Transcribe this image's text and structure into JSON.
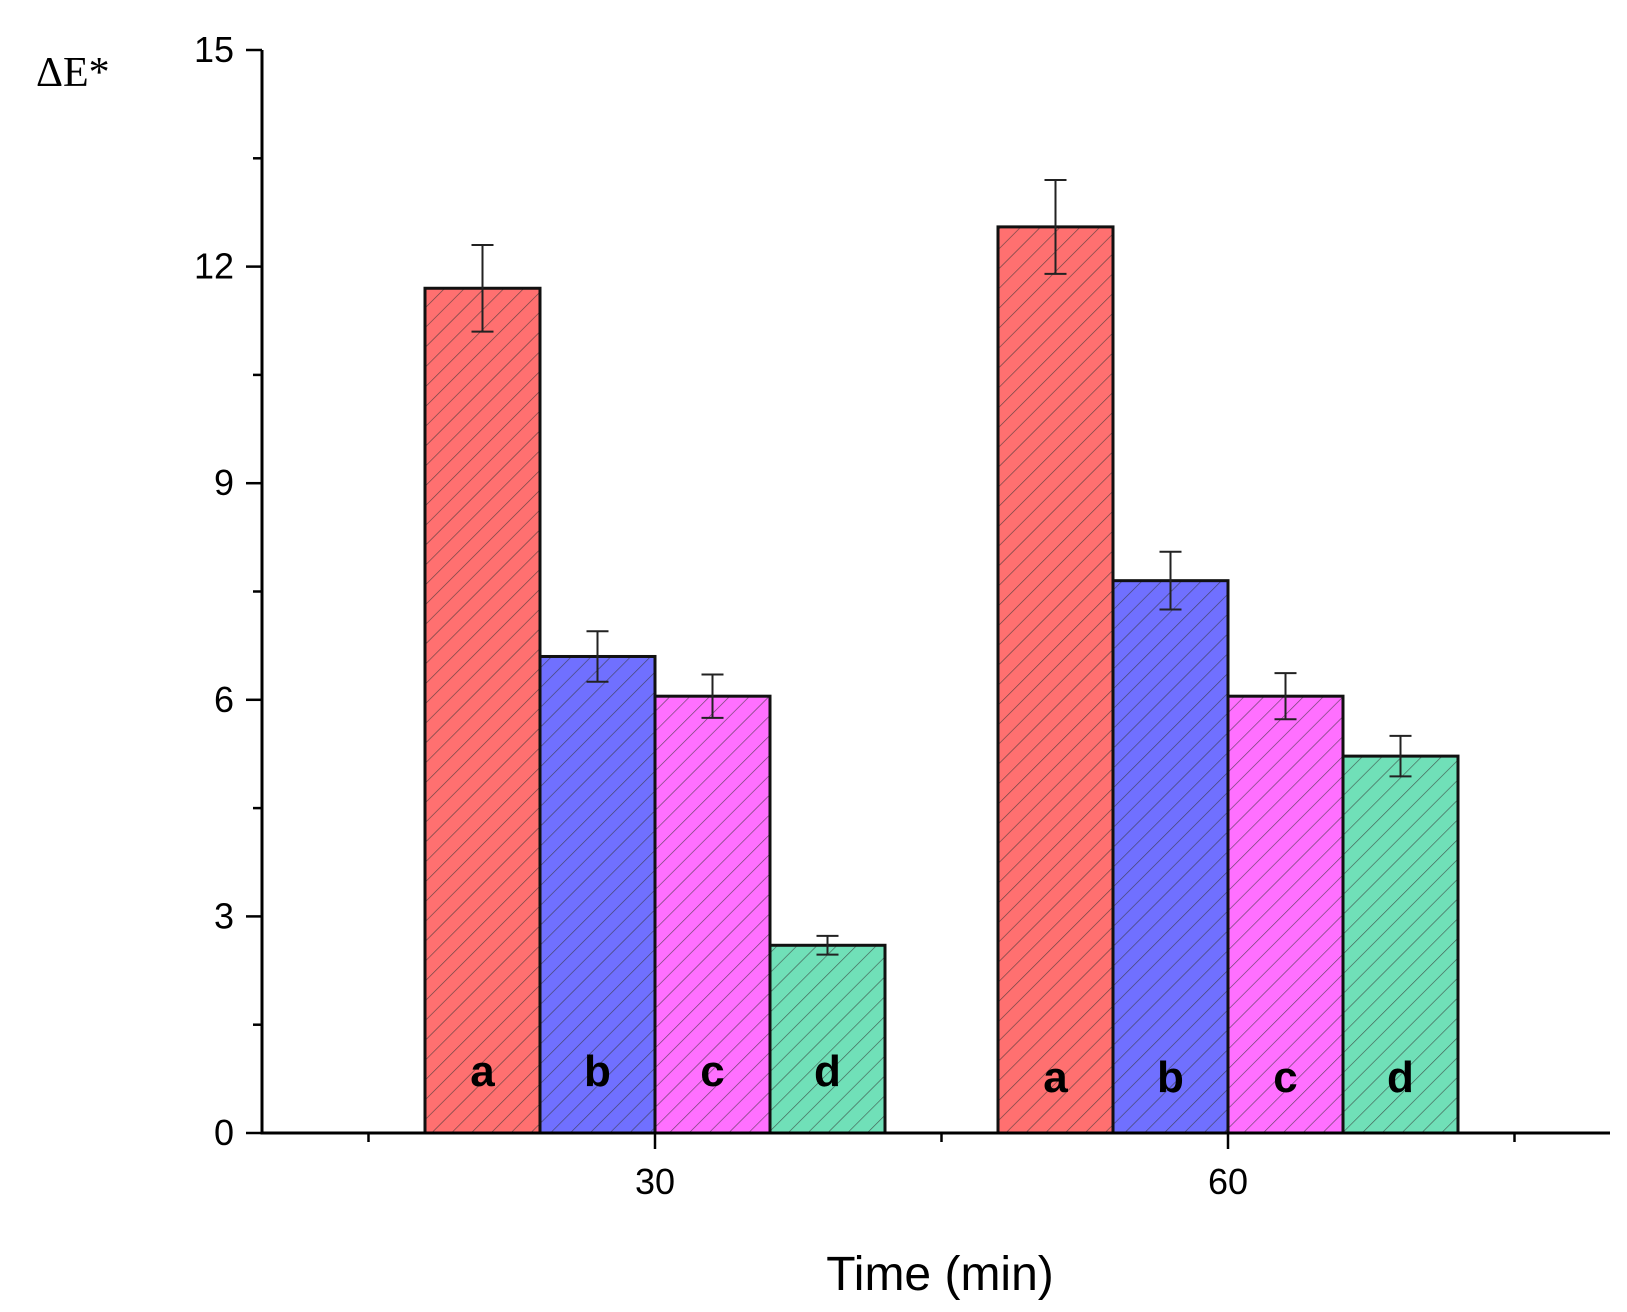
{
  "chart_data": {
    "type": "bar",
    "title": "",
    "xlabel": "Time (min)",
    "ylabel": "ΔE*",
    "ylim": [
      0,
      15
    ],
    "yticks": [
      0,
      3,
      6,
      9,
      12,
      15
    ],
    "grid": false,
    "legend": "none",
    "categories": [
      "30",
      "60"
    ],
    "series": [
      {
        "name": "a",
        "values": [
          11.7,
          12.55
        ],
        "errors": [
          0.6,
          0.65
        ],
        "color": "#ff7070",
        "label": "a"
      },
      {
        "name": "b",
        "values": [
          6.6,
          7.65
        ],
        "errors": [
          0.35,
          0.4
        ],
        "color": "#7070ff",
        "label": "b"
      },
      {
        "name": "c",
        "values": [
          6.05,
          6.05
        ],
        "errors": [
          0.3,
          0.32
        ],
        "color": "#ff70ff",
        "label": "c"
      },
      {
        "name": "d",
        "values": [
          2.6,
          5.22
        ],
        "errors": [
          0.13,
          0.28
        ],
        "color": "#70e0b8",
        "label": "d"
      }
    ],
    "pattern": "diagonal-hatch"
  }
}
